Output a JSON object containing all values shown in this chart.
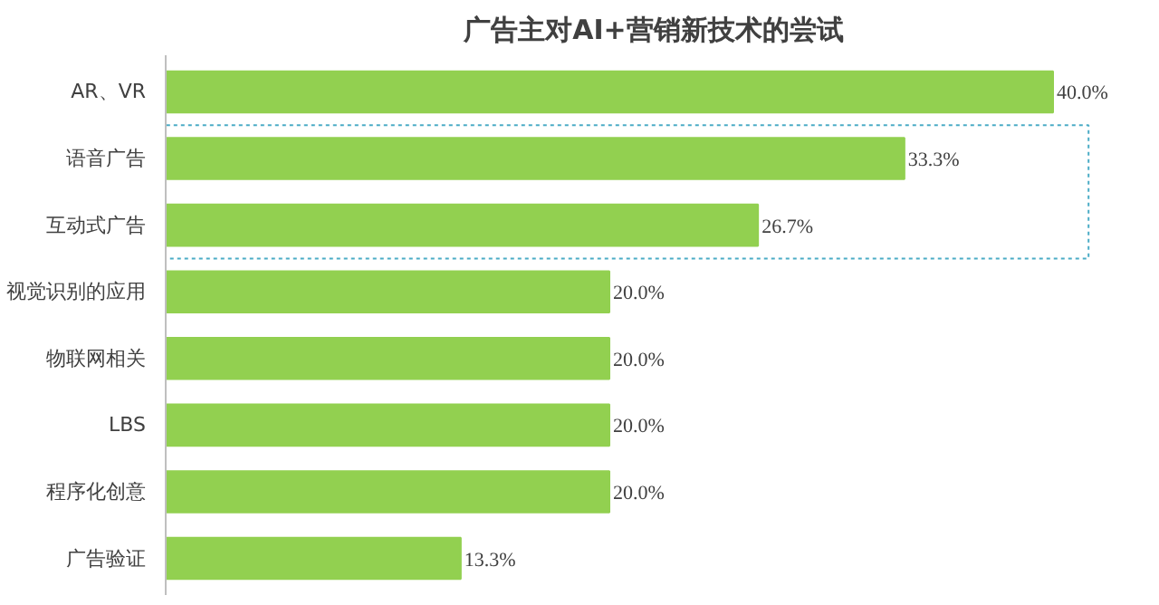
{
  "chart_data": {
    "type": "bar",
    "orientation": "horizontal",
    "title": "广告主对AI+营销新技术的尝试",
    "categories": [
      "AR、VR",
      "语音广告",
      "互动式广告",
      "视觉识别的应用",
      "物联网相关",
      "LBS",
      "程序化创意",
      "广告验证"
    ],
    "values": [
      40.0,
      33.3,
      26.7,
      20.0,
      20.0,
      20.0,
      20.0,
      13.3
    ],
    "color": "#92d050",
    "value_labels": [
      "40.0%",
      "33.3%",
      "26.7%",
      "20.0%",
      "20.0%",
      "20.0%",
      "20.0%",
      "13.3%"
    ],
    "grid": false
  }
}
